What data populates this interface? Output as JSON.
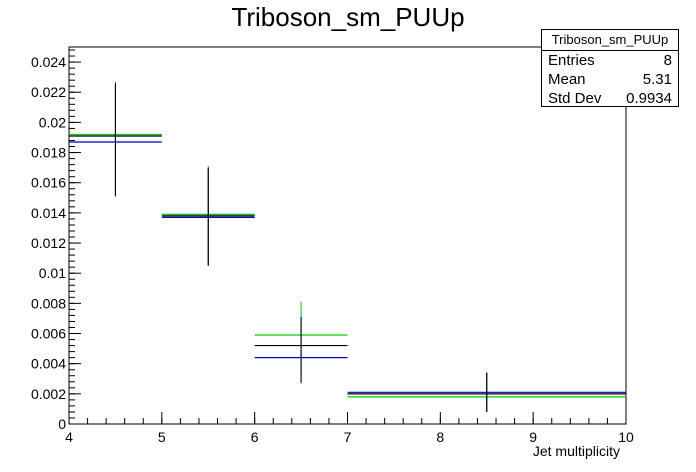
{
  "chart_data": {
    "type": "histogram-errorbars",
    "title": "Triboson_sm_PUUp",
    "xlabel": "Jet multiplicity",
    "ylabel": "",
    "xlim": [
      4,
      10
    ],
    "ylim": [
      0,
      0.025
    ],
    "x_ticks": [
      "4",
      "5",
      "6",
      "7",
      "8",
      "9",
      "10"
    ],
    "y_ticks": [
      "0",
      "0.002",
      "0.004",
      "0.006",
      "0.008",
      "0.01",
      "0.012",
      "0.014",
      "0.016",
      "0.018",
      "0.02",
      "0.022",
      "0.024"
    ],
    "series": [
      {
        "color": "#00cc00",
        "bins": [
          {
            "x": [
              4,
              5
            ],
            "y": 0.0192,
            "err": [
              0.0151,
              0.0227
            ]
          },
          {
            "x": [
              5,
              6
            ],
            "y": 0.0139,
            "err": [
              0.0105,
              0.0171
            ]
          },
          {
            "x": [
              6,
              7
            ],
            "y": 0.0059,
            "err": [
              0.0032,
              0.0081
            ]
          },
          {
            "x": [
              7,
              10
            ],
            "y": 0.0018,
            "err": [
              0.0008,
              0.0034
            ]
          }
        ]
      },
      {
        "color": "#0000cc",
        "bins": [
          {
            "x": [
              4,
              5
            ],
            "y": 0.0187,
            "err": [
              0.0151,
              0.0225
            ]
          },
          {
            "x": [
              5,
              6
            ],
            "y": 0.0137,
            "err": [
              0.0105,
              0.0169
            ]
          },
          {
            "x": [
              6,
              7
            ],
            "y": 0.0044,
            "err": [
              0.0028,
              0.0071
            ]
          },
          {
            "x": [
              7,
              10
            ],
            "y": 0.0021,
            "err": [
              0.0008,
              0.0034
            ]
          }
        ]
      },
      {
        "color": "#000000",
        "bins": [
          {
            "x": [
              4,
              5
            ],
            "y": 0.0191,
            "err": [
              0.0151,
              0.0226
            ]
          },
          {
            "x": [
              5,
              6
            ],
            "y": 0.0138,
            "err": [
              0.0105,
              0.017
            ]
          },
          {
            "x": [
              6,
              7
            ],
            "y": 0.0052,
            "err": [
              0.0027,
              0.0071
            ]
          },
          {
            "x": [
              7,
              10
            ],
            "y": 0.002,
            "err": [
              0.0008,
              0.0034
            ]
          }
        ]
      }
    ]
  },
  "stats": {
    "name": "Triboson_sm_PUUp",
    "rows": [
      {
        "label": "Entries",
        "value": "8"
      },
      {
        "label": "Mean",
        "value": "5.31"
      },
      {
        "label": "Std Dev",
        "value": "0.9934"
      }
    ]
  }
}
